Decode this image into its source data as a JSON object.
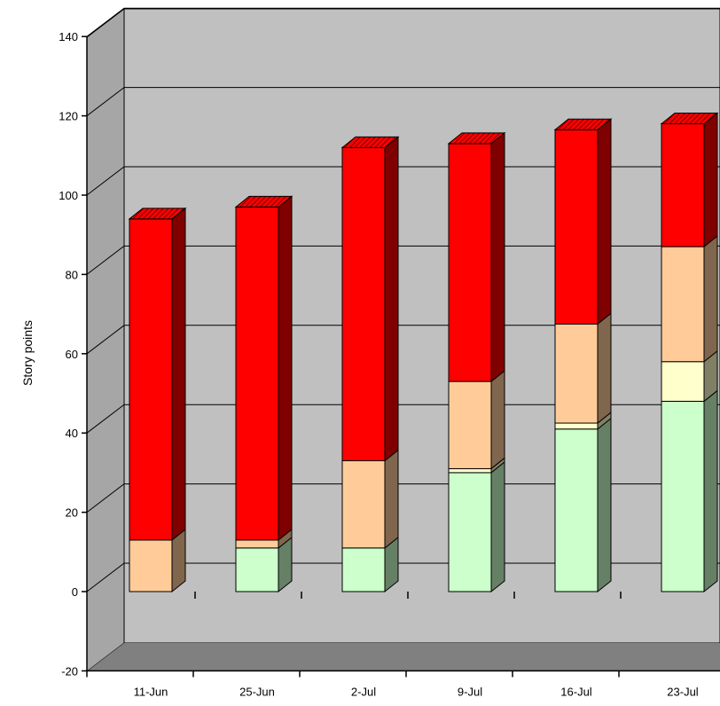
{
  "chart_data": {
    "type": "bar",
    "stacked": true,
    "three_d": true,
    "title": "",
    "xlabel": "",
    "ylabel": "Story points",
    "ylim": [
      -20,
      140
    ],
    "yticks": [
      -20,
      0,
      20,
      40,
      60,
      80,
      100,
      120,
      140
    ],
    "grid": true,
    "categories": [
      "11-Jun",
      "25-Jun",
      "2-Jul",
      "9-Jul",
      "16-Jul",
      "23-Jul"
    ],
    "series": [
      {
        "color": "#ccffcc",
        "values": [
          0,
          11,
          11,
          30,
          41,
          48
        ]
      },
      {
        "color": "#ffffcc",
        "values": [
          0,
          0,
          0,
          1,
          1.5,
          10
        ]
      },
      {
        "color": "#ffcc99",
        "values": [
          13,
          2,
          22,
          22,
          25,
          29
        ]
      },
      {
        "color": "#ff0000",
        "values": [
          81,
          84,
          79,
          60,
          49,
          31
        ]
      }
    ],
    "top_cap": {
      "color": "#ff0000",
      "hatch": "#7a0000"
    }
  }
}
